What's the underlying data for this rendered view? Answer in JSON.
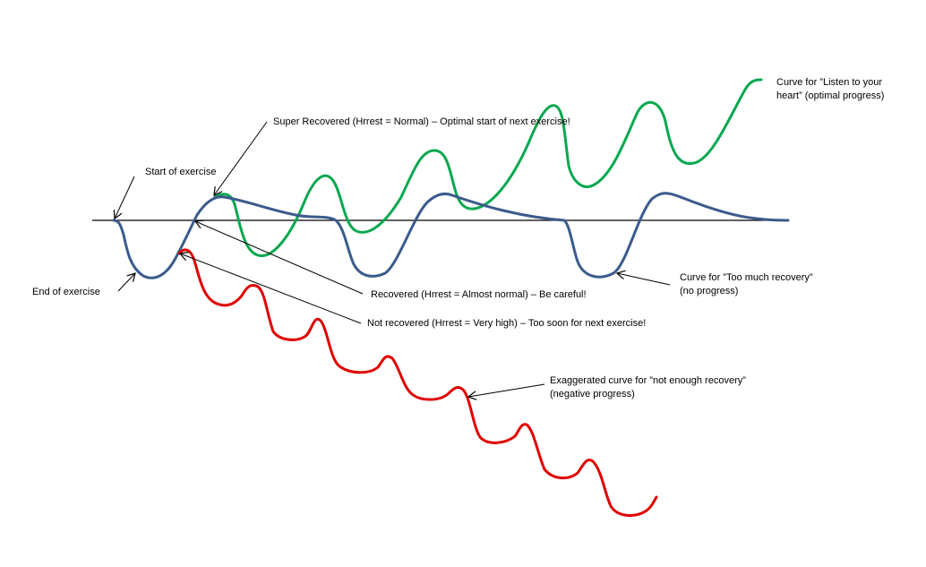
{
  "labels": {
    "start_of_exercise": "Start of exercise",
    "end_of_exercise": "End of exercise",
    "super_recovered": "Super Recovered  (Hrrest = Normal) – Optimal start of next exercise!",
    "recovered": "Recovered  (Hrrest = Almost normal) – Be careful!",
    "not_recovered": "Not recovered (Hrrest = Very high) – Too soon for next exercise!",
    "listen_line1": "Curve for ”Listen to your",
    "listen_line2": "heart” (optimal progress)",
    "too_much_line1": "Curve for ”Too much recovery”",
    "too_much_line2": "(no progress)",
    "not_enough_line1": "Exaggerated curve for ”not enough recovery”",
    "not_enough_line2": "(negative progress)"
  },
  "colors": {
    "green": "#0aa84f",
    "blue": "#3b5b8c",
    "red": "#e00000",
    "baseline": "#000000",
    "arrow": "#000000"
  }
}
